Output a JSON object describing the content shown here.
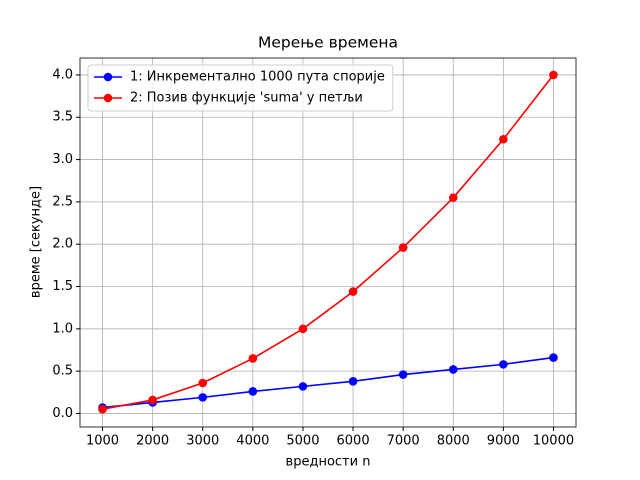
{
  "chart_data": {
    "type": "line",
    "title": "Мерење времена",
    "xlabel": "вредности n",
    "ylabel": "време [секунде]",
    "x": [
      1000,
      2000,
      3000,
      4000,
      5000,
      6000,
      7000,
      8000,
      9000,
      10000
    ],
    "series": [
      {
        "name": "1: Инкрементално 1000 пута спорије",
        "color": "#0000ff",
        "values": [
          0.07,
          0.13,
          0.19,
          0.26,
          0.32,
          0.38,
          0.46,
          0.52,
          0.58,
          0.66
        ]
      },
      {
        "name": "2: Позив функције 'suma' у петљи",
        "color": "#ff0000",
        "values": [
          0.05,
          0.16,
          0.36,
          0.65,
          1.0,
          1.44,
          1.96,
          2.55,
          3.24,
          4.0
        ]
      }
    ],
    "xlim": [
      550,
      10450
    ],
    "ylim": [
      -0.16,
      4.2
    ],
    "xticks": [
      1000,
      2000,
      3000,
      4000,
      5000,
      6000,
      7000,
      8000,
      9000,
      10000
    ],
    "yticks": [
      {
        "value": 0,
        "label": "0.0"
      },
      {
        "value": 0.5,
        "label": "0.5"
      },
      {
        "value": 1,
        "label": "1.0"
      },
      {
        "value": 1.5,
        "label": "1.5"
      },
      {
        "value": 2,
        "label": "2.0"
      },
      {
        "value": 2.5,
        "label": "2.5"
      },
      {
        "value": 3,
        "label": "3.0"
      },
      {
        "value": 3.5,
        "label": "3.5"
      },
      {
        "value": 4,
        "label": "4.0"
      }
    ],
    "grid": true,
    "legend": "upper-left"
  }
}
